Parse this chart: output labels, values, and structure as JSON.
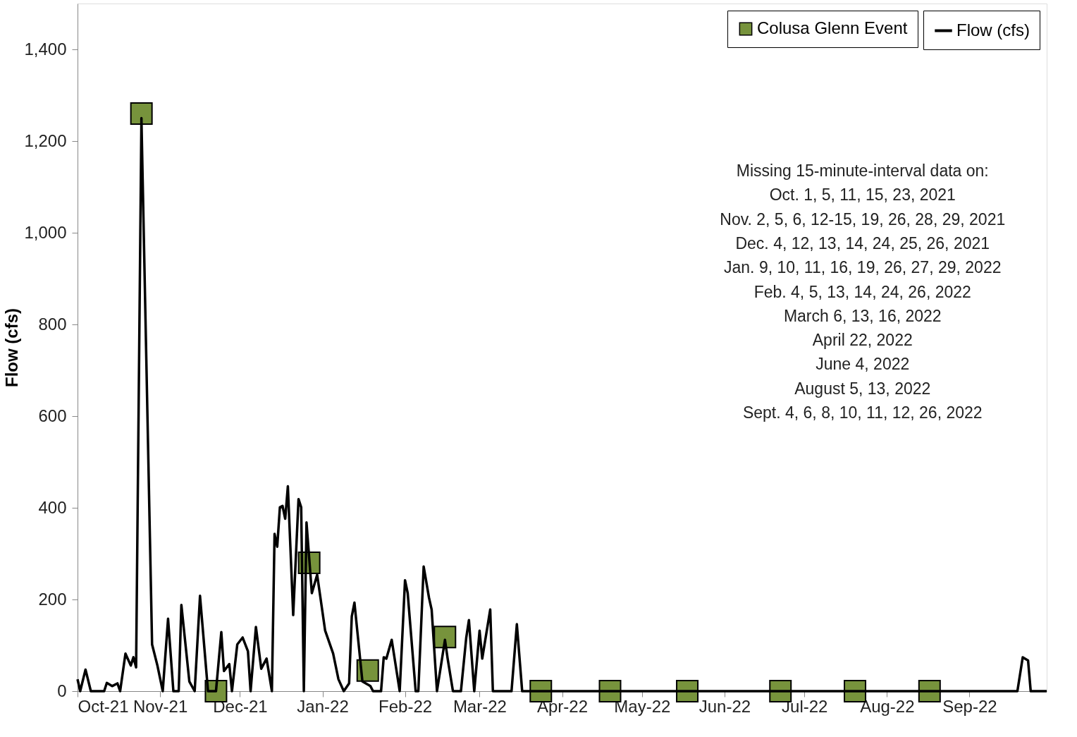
{
  "chart_data": {
    "type": "line",
    "ylabel": "Flow (cfs)",
    "xlim": [
      "2021-10-01",
      "2022-09-30"
    ],
    "xticks": [
      {
        "value": "2021-10-01",
        "label": "Oct-21"
      },
      {
        "value": "2021-11-01",
        "label": "Nov-21"
      },
      {
        "value": "2021-12-01",
        "label": "Dec-21"
      },
      {
        "value": "2022-01-01",
        "label": "Jan-22"
      },
      {
        "value": "2022-02-01",
        "label": "Feb-22"
      },
      {
        "value": "2022-03-01",
        "label": "Mar-22"
      },
      {
        "value": "2022-04-01",
        "label": "Apr-22"
      },
      {
        "value": "2022-05-01",
        "label": "May-22"
      },
      {
        "value": "2022-06-01",
        "label": "Jun-22"
      },
      {
        "value": "2022-07-01",
        "label": "Jul-22"
      },
      {
        "value": "2022-08-01",
        "label": "Aug-22"
      },
      {
        "value": "2022-09-01",
        "label": "Sep-22"
      }
    ],
    "ylim": [
      0,
      1500
    ],
    "yticks": [
      0,
      200,
      400,
      600,
      800,
      {
        "value": 1000,
        "label": "1,000"
      },
      {
        "value": 1200,
        "label": "1,200"
      },
      {
        "value": 1400,
        "label": "1,400"
      }
    ],
    "grid": false,
    "legend": "top right",
    "series": [
      {
        "name": "Flow (cfs)",
        "color": "#000000",
        "marker": "none",
        "line_style": "solid",
        "x": [
          "2021-10-01",
          "2021-10-02",
          "2021-10-04",
          "2021-10-06",
          "2021-10-11",
          "2021-10-12",
          "2021-10-14",
          "2021-10-16",
          "2021-10-17",
          "2021-10-19",
          "2021-10-21",
          "2021-10-22",
          "2021-10-23",
          "2021-10-25",
          "2021-10-29",
          "2021-10-31",
          "2021-11-02",
          "2021-11-04",
          "2021-11-06",
          "2021-11-08",
          "2021-11-09",
          "2021-11-12",
          "2021-11-14",
          "2021-11-16",
          "2021-11-19",
          "2021-11-22",
          "2021-11-24",
          "2021-11-25",
          "2021-11-27",
          "2021-11-28",
          "2021-11-30",
          "2021-12-02",
          "2021-12-04",
          "2021-12-05",
          "2021-12-07",
          "2021-12-09",
          "2021-12-11",
          "2021-12-13",
          "2021-12-14",
          "2021-12-15",
          "2021-12-16",
          "2021-12-17",
          "2021-12-18",
          "2021-12-19",
          "2021-12-21",
          "2021-12-23",
          "2021-12-24",
          "2021-12-25",
          "2021-12-26",
          "2021-12-28",
          "2021-12-30",
          "2022-01-02",
          "2022-01-05",
          "2022-01-07",
          "2022-01-09",
          "2022-01-11",
          "2022-01-12",
          "2022-01-13",
          "2022-01-16",
          "2022-01-19",
          "2022-01-20",
          "2022-01-23",
          "2022-01-24",
          "2022-01-25",
          "2022-01-27",
          "2022-01-30",
          "2022-02-01",
          "2022-02-02",
          "2022-02-05",
          "2022-02-06",
          "2022-02-08",
          "2022-02-10",
          "2022-02-11",
          "2022-02-13",
          "2022-02-16",
          "2022-02-17",
          "2022-02-19",
          "2022-02-22",
          "2022-02-24",
          "2022-02-25",
          "2022-02-27",
          "2022-03-01",
          "2022-03-02",
          "2022-03-05",
          "2022-03-06",
          "2022-03-13",
          "2022-03-15",
          "2022-03-17",
          "2022-09-19",
          "2022-09-21",
          "2022-09-23",
          "2022-09-24",
          "2022-09-30"
        ],
        "values": [
          26,
          0,
          47,
          0,
          0,
          18,
          11,
          17,
          0,
          82,
          56,
          74,
          52,
          1250,
          102,
          56,
          0,
          158,
          0,
          0,
          188,
          21,
          0,
          208,
          0,
          0,
          129,
          44,
          59,
          0,
          102,
          117,
          87,
          0,
          140,
          49,
          71,
          0,
          343,
          315,
          401,
          404,
          376,
          447,
          166,
          419,
          401,
          0,
          368,
          214,
          254,
          132,
          82,
          26,
          0,
          17,
          163,
          193,
          21,
          11,
          0,
          0,
          74,
          71,
          112,
          0,
          242,
          214,
          0,
          0,
          272,
          204,
          178,
          0,
          112,
          71,
          0,
          0,
          117,
          155,
          0,
          132,
          71,
          178,
          0,
          0,
          146,
          0,
          0,
          74,
          67,
          0,
          0
        ]
      },
      {
        "name": "Colusa Glenn Event",
        "type": "scatter",
        "color": "#77933c",
        "marker": "square",
        "x": [
          "2021-10-25",
          "2021-11-22",
          "2021-12-27",
          "2022-01-18",
          "2022-02-16",
          "2022-03-24",
          "2022-04-19",
          "2022-05-18",
          "2022-06-22",
          "2022-07-20",
          "2022-08-17"
        ],
        "values": [
          1260,
          0,
          280,
          45,
          118,
          0,
          0,
          0,
          0,
          0,
          0
        ]
      }
    ],
    "annotations": [
      "Missing 15-minute-interval data on:",
      "Oct. 1, 5, 11, 15, 23, 2021",
      "Nov. 2, 5, 6, 12-15, 19, 26, 28, 29, 2021",
      "Dec. 4, 12, 13, 14, 24, 25, 26, 2021",
      "Jan. 9, 10, 11, 16, 19, 26, 27, 29, 2022",
      "Feb. 4, 5, 13, 14, 24, 26, 2022",
      "March 6, 13, 16, 2022",
      "April 22, 2022",
      "June 4, 2022",
      "August 5, 13, 2022",
      "Sept. 4, 6, 8, 10, 11, 12, 26, 2022"
    ]
  }
}
